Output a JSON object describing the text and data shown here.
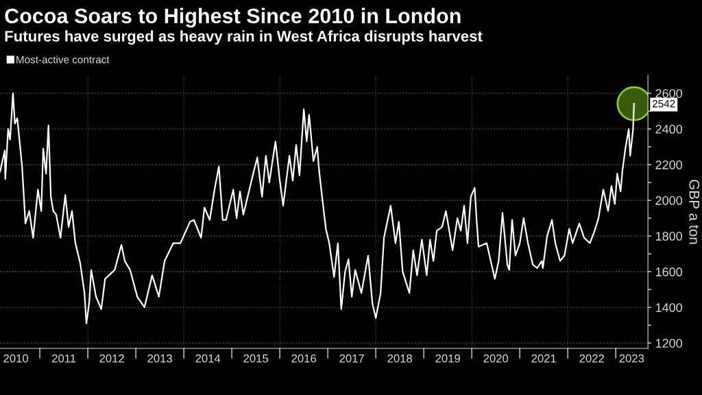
{
  "chart_data": {
    "type": "line",
    "title": "Cocoa Soars to Highest Since 2010 in London",
    "subtitle": "Futures have surged as heavy rain in West Africa disrupts harvest",
    "ylabel": "GBP a ton",
    "legend": "top left",
    "grid": "y",
    "xlim": [
      2010.17,
      2023.67
    ],
    "ylim": [
      1170,
      2700
    ],
    "xticks": [
      {
        "value": 2010.5,
        "label": "2010"
      },
      {
        "value": 2011,
        "label": null
      },
      {
        "value": 2011.5,
        "label": "2011"
      },
      {
        "value": 2012,
        "label": null
      },
      {
        "value": 2012.5,
        "label": "2012"
      },
      {
        "value": 2013,
        "label": null
      },
      {
        "value": 2013.5,
        "label": "2013"
      },
      {
        "value": 2014,
        "label": null
      },
      {
        "value": 2014.5,
        "label": "2014"
      },
      {
        "value": 2015,
        "label": null
      },
      {
        "value": 2015.5,
        "label": "2015"
      },
      {
        "value": 2016,
        "label": null
      },
      {
        "value": 2016.5,
        "label": "2016"
      },
      {
        "value": 2017,
        "label": null
      },
      {
        "value": 2017.5,
        "label": "2017"
      },
      {
        "value": 2018,
        "label": null
      },
      {
        "value": 2018.5,
        "label": "2018"
      },
      {
        "value": 2019,
        "label": null
      },
      {
        "value": 2019.5,
        "label": "2019"
      },
      {
        "value": 2020,
        "label": null
      },
      {
        "value": 2020.5,
        "label": "2020"
      },
      {
        "value": 2021,
        "label": null
      },
      {
        "value": 2021.5,
        "label": "2021"
      },
      {
        "value": 2022,
        "label": null
      },
      {
        "value": 2022.5,
        "label": "2022"
      },
      {
        "value": 2023,
        "label": null
      },
      {
        "value": 2023.33,
        "label": "2023"
      }
    ],
    "yticks": [
      1200,
      {
        "value": 1300,
        "label": null
      },
      1400,
      {
        "value": 1500,
        "label": null
      },
      1600,
      {
        "value": 1700,
        "label": null
      },
      1800,
      {
        "value": 1900,
        "label": null
      },
      2000,
      {
        "value": 2100,
        "label": null
      },
      2200,
      {
        "value": 2300,
        "label": null
      },
      2400,
      {
        "value": 2500,
        "label": null
      },
      2600
    ],
    "ref_lines": [
      {
        "axis": "x",
        "value": 2012,
        "color": "#555555",
        "line_style": "dotted"
      },
      {
        "axis": "x",
        "value": 2014,
        "color": "#555555",
        "line_style": "dotted"
      },
      {
        "axis": "x",
        "value": 2016,
        "color": "#555555",
        "line_style": "dotted"
      },
      {
        "axis": "x",
        "value": 2018,
        "color": "#555555",
        "line_style": "dotted"
      },
      {
        "axis": "x",
        "value": 2020,
        "color": "#555555",
        "line_style": "dotted"
      },
      {
        "axis": "x",
        "value": 2022,
        "color": "#555555",
        "line_style": "dotted"
      }
    ],
    "annotations": [
      {
        "text": "2542",
        "x": 2023.38,
        "y": 2542
      }
    ],
    "series": [
      {
        "name": "Most-active contract",
        "color": "#ffffff",
        "x": [
          2010.17,
          2010.27,
          2010.28,
          2010.34,
          2010.38,
          2010.44,
          2010.48,
          2010.53,
          2010.63,
          2010.7,
          2010.78,
          2010.86,
          2010.96,
          2011.03,
          2011.07,
          2011.13,
          2011.18,
          2011.23,
          2011.28,
          2011.34,
          2011.43,
          2011.53,
          2011.6,
          2011.67,
          2011.74,
          2011.84,
          2011.93,
          2011.97,
          2012.03,
          2012.07,
          2012.17,
          2012.28,
          2012.36,
          2012.56,
          2012.7,
          2012.77,
          2012.88,
          2013.03,
          2013.18,
          2013.34,
          2013.48,
          2013.6,
          2013.78,
          2013.93,
          2013.98,
          2014.13,
          2014.21,
          2014.36,
          2014.43,
          2014.54,
          2014.64,
          2014.73,
          2014.81,
          2014.88,
          2015.03,
          2015.1,
          2015.17,
          2015.24,
          2015.41,
          2015.53,
          2015.63,
          2015.71,
          2015.78,
          2015.91,
          2016.0,
          2016.07,
          2016.2,
          2016.27,
          2016.34,
          2016.41,
          2016.5,
          2016.56,
          2016.61,
          2016.7,
          2016.78,
          2016.81,
          2016.88,
          2016.96,
          2017.03,
          2017.13,
          2017.21,
          2017.28,
          2017.36,
          2017.43,
          2017.5,
          2017.57,
          2017.7,
          2017.84,
          2017.93,
          2018.0,
          2018.1,
          2018.17,
          2018.31,
          2018.41,
          2018.48,
          2018.56,
          2018.7,
          2018.78,
          2018.86,
          2018.96,
          2019.06,
          2019.13,
          2019.2,
          2019.27,
          2019.38,
          2019.46,
          2019.53,
          2019.6,
          2019.7,
          2019.77,
          2019.84,
          2019.91,
          2019.98,
          2020.06,
          2020.1,
          2020.14,
          2020.31,
          2020.48,
          2020.56,
          2020.64,
          2020.74,
          2020.78,
          2020.84,
          2020.91,
          2021.0,
          2021.08,
          2021.17,
          2021.27,
          2021.36,
          2021.46,
          2021.48,
          2021.57,
          2021.67,
          2021.74,
          2021.84,
          2021.93,
          2022.03,
          2022.1,
          2022.24,
          2022.34,
          2022.46,
          2022.56,
          2022.64,
          2022.74,
          2022.84,
          2022.91,
          2022.98,
          2023.03,
          2023.1,
          2023.14,
          2023.2,
          2023.27,
          2023.3,
          2023.36,
          2023.38
        ],
        "values": [
          2160,
          2280,
          2120,
          2400,
          2340,
          2600,
          2430,
          2460,
          2190,
          1870,
          1940,
          1790,
          2060,
          1940,
          2290,
          2150,
          2420,
          2020,
          1940,
          1920,
          1790,
          2030,
          1850,
          1940,
          1760,
          1650,
          1480,
          1310,
          1430,
          1610,
          1460,
          1390,
          1560,
          1610,
          1750,
          1660,
          1610,
          1460,
          1400,
          1580,
          1460,
          1660,
          1760,
          1760,
          1790,
          1880,
          1890,
          1790,
          1960,
          1890,
          2060,
          2190,
          1890,
          1890,
          2060,
          1900,
          2050,
          1920,
          2110,
          2240,
          2020,
          2250,
          2100,
          2330,
          2110,
          1970,
          2250,
          2110,
          2310,
          2140,
          2510,
          2330,
          2480,
          2220,
          2300,
          2190,
          2020,
          1840,
          1760,
          1570,
          1760,
          1390,
          1600,
          1670,
          1460,
          1610,
          1480,
          1690,
          1420,
          1340,
          1480,
          1790,
          1970,
          1760,
          1880,
          1600,
          1480,
          1720,
          1580,
          1780,
          1580,
          1780,
          1660,
          1830,
          1850,
          1940,
          1830,
          1720,
          1900,
          1830,
          1970,
          1760,
          2020,
          2070,
          1890,
          1740,
          1760,
          1560,
          1660,
          1930,
          1640,
          1610,
          1890,
          1690,
          1760,
          1900,
          1760,
          1640,
          1620,
          1660,
          1620,
          1800,
          1890,
          1760,
          1660,
          1690,
          1840,
          1760,
          1870,
          1790,
          1760,
          1830,
          1900,
          2060,
          1940,
          2080,
          1980,
          2150,
          2050,
          2170,
          2290,
          2400,
          2250,
          2400,
          2542
        ]
      },
      {
        "type": "scatter",
        "color": "#3b5a0c",
        "x": [
          2023.38
        ],
        "values": [
          2542
        ]
      }
    ]
  }
}
